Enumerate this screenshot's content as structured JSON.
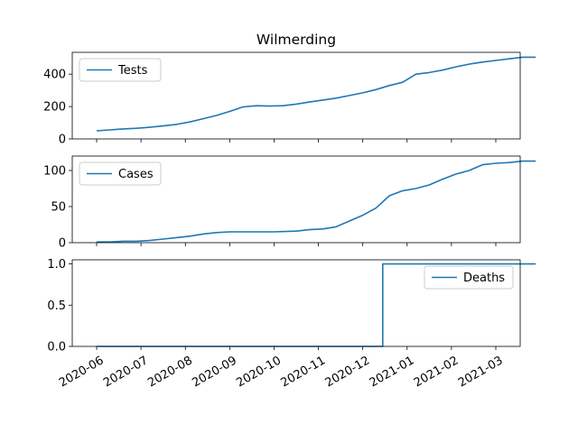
{
  "chart_data": {
    "type": "line",
    "title": "Wilmerding",
    "x_tick_labels": [
      "2020-06",
      "2020-07",
      "2020-08",
      "2020-09",
      "2020-10",
      "2020-11",
      "2020-12",
      "2021-01",
      "2021-02",
      "2021-03"
    ],
    "x_tick_months": [
      0,
      1,
      2,
      3,
      4,
      5,
      6,
      7,
      8,
      9
    ],
    "x_range_months": [
      -0.55,
      9.55
    ],
    "line_color": "#1f77b4",
    "panels": [
      {
        "name": "tests",
        "legend": "Tests",
        "legend_position": "upper-left",
        "ylim": [
          0,
          535
        ],
        "y_ticks": [
          0,
          200,
          400
        ],
        "y_tick_labels": [
          "0",
          "200",
          "400"
        ],
        "points": [
          [
            0.0,
            50
          ],
          [
            0.3,
            56
          ],
          [
            0.6,
            62
          ],
          [
            0.9,
            66
          ],
          [
            1.2,
            72
          ],
          [
            1.5,
            80
          ],
          [
            1.8,
            90
          ],
          [
            2.1,
            105
          ],
          [
            2.4,
            125
          ],
          [
            2.7,
            145
          ],
          [
            3.0,
            170
          ],
          [
            3.3,
            198
          ],
          [
            3.6,
            205
          ],
          [
            3.9,
            203
          ],
          [
            4.2,
            205
          ],
          [
            4.5,
            215
          ],
          [
            4.8,
            228
          ],
          [
            5.1,
            240
          ],
          [
            5.4,
            252
          ],
          [
            5.7,
            268
          ],
          [
            6.0,
            285
          ],
          [
            6.3,
            305
          ],
          [
            6.6,
            330
          ],
          [
            6.9,
            350
          ],
          [
            7.2,
            400
          ],
          [
            7.5,
            410
          ],
          [
            7.8,
            425
          ],
          [
            8.1,
            445
          ],
          [
            8.4,
            462
          ],
          [
            8.7,
            475
          ],
          [
            9.0,
            485
          ],
          [
            9.3,
            495
          ],
          [
            9.6,
            505
          ],
          [
            9.9,
            505
          ]
        ]
      },
      {
        "name": "cases",
        "legend": "Cases",
        "legend_position": "upper-left",
        "ylim": [
          0,
          120
        ],
        "y_ticks": [
          0,
          50,
          100
        ],
        "y_tick_labels": [
          "0",
          "50",
          "100"
        ],
        "points": [
          [
            0.0,
            1
          ],
          [
            0.3,
            1
          ],
          [
            0.6,
            2
          ],
          [
            0.9,
            2
          ],
          [
            1.2,
            3
          ],
          [
            1.5,
            5
          ],
          [
            1.8,
            7
          ],
          [
            2.1,
            9
          ],
          [
            2.4,
            12
          ],
          [
            2.7,
            14
          ],
          [
            3.0,
            15
          ],
          [
            3.5,
            15
          ],
          [
            4.0,
            15
          ],
          [
            4.5,
            16
          ],
          [
            4.8,
            18
          ],
          [
            5.1,
            19
          ],
          [
            5.4,
            22
          ],
          [
            5.7,
            30
          ],
          [
            6.0,
            38
          ],
          [
            6.3,
            48
          ],
          [
            6.6,
            65
          ],
          [
            6.9,
            72
          ],
          [
            7.2,
            75
          ],
          [
            7.5,
            80
          ],
          [
            7.8,
            88
          ],
          [
            8.1,
            95
          ],
          [
            8.4,
            100
          ],
          [
            8.7,
            108
          ],
          [
            9.0,
            110
          ],
          [
            9.3,
            111
          ],
          [
            9.6,
            113
          ],
          [
            9.9,
            113
          ]
        ]
      },
      {
        "name": "deaths",
        "legend": "Deaths",
        "legend_position": "upper-right",
        "ylim": [
          0,
          1.05
        ],
        "y_ticks": [
          0,
          0.5,
          1.0
        ],
        "y_tick_labels": [
          "0.0",
          "0.5",
          "1.0"
        ],
        "points": [
          [
            0.0,
            0
          ],
          [
            6.45,
            0
          ],
          [
            6.45,
            1
          ],
          [
            9.9,
            1
          ]
        ]
      }
    ]
  }
}
